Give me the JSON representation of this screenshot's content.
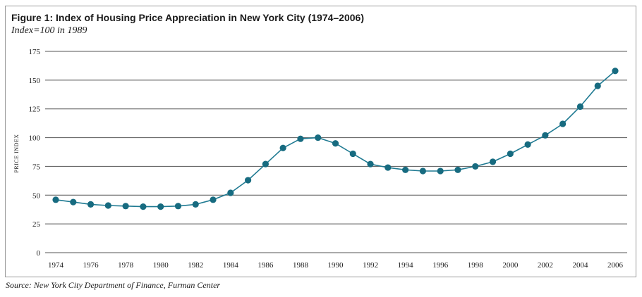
{
  "figure": {
    "title": "Figure 1: Index of Housing Price Appreciation in New York City (1974–2006)",
    "subtitle": "Index=100 in 1989",
    "source": "Source: New York City Department of Finance, Furman Center"
  },
  "chart_data": {
    "type": "line",
    "title": "Figure 1: Index of Housing Price Appreciation in New York City (1974–2006)",
    "subtitle": "Index=100 in 1989",
    "xlabel": "",
    "ylabel": "PRICE INDEX",
    "x": [
      1974,
      1975,
      1976,
      1977,
      1978,
      1979,
      1980,
      1981,
      1982,
      1983,
      1984,
      1985,
      1986,
      1987,
      1988,
      1989,
      1990,
      1991,
      1992,
      1993,
      1994,
      1995,
      1996,
      1997,
      1998,
      1999,
      2000,
      2001,
      2002,
      2003,
      2004,
      2005,
      2006
    ],
    "series": [
      {
        "name": "",
        "values": [
          46,
          44,
          42,
          41,
          40.5,
          40,
          40,
          40.5,
          42,
          46,
          52,
          63,
          77,
          91,
          99,
          100,
          95,
          86,
          77,
          74,
          72,
          71,
          71,
          72,
          75,
          79,
          86,
          94,
          102,
          112,
          127,
          145,
          158
        ]
      }
    ],
    "xticks": [
      "1974",
      "1976",
      "1978",
      "1980",
      "1982",
      "1984",
      "1986",
      "1988",
      "1990",
      "1992",
      "1994",
      "1996",
      "1998",
      "2000",
      "2002",
      "2004",
      "2006"
    ],
    "yticks": [
      "0",
      "25",
      "50",
      "75",
      "100",
      "125",
      "150",
      "175"
    ],
    "xlim": [
      1974,
      2006
    ],
    "ylim": [
      0,
      175
    ],
    "grid": "horizontal",
    "legend": "none",
    "colors": {
      "series": "#1f7a92",
      "marker": "#176b80",
      "grid": "#555555"
    }
  }
}
